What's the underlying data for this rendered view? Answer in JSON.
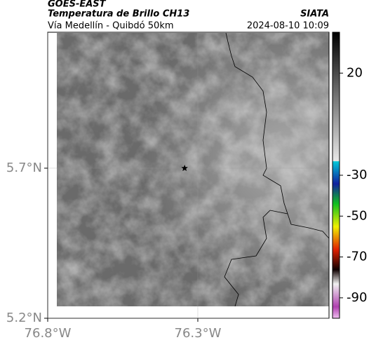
{
  "chart_data": {
    "type": "map",
    "title": "GOES-EAST",
    "subtitle": "Temperatura de Brillo CH13",
    "source": "SIATA",
    "route": "Vía Medellín - Quibdó 50km",
    "datetime": "2024-08-10 10:09",
    "xlim": [
      -76.8,
      -75.863
    ],
    "ylim": [
      5.2,
      6.153
    ],
    "xticks": [
      {
        "value": -76.8,
        "label": "76.8°W"
      },
      {
        "value": -76.3,
        "label": "76.3°W"
      }
    ],
    "yticks": [
      {
        "value": 5.2,
        "label": "5.2°N"
      },
      {
        "value": 5.7,
        "label": "5.7°N"
      }
    ],
    "grid": true,
    "marker": {
      "lon": -76.344,
      "lat": 5.7
    },
    "colorbar": {
      "lim": [
        -100,
        40
      ],
      "ticks": [
        20,
        -30,
        -50,
        -70,
        -90
      ]
    }
  }
}
